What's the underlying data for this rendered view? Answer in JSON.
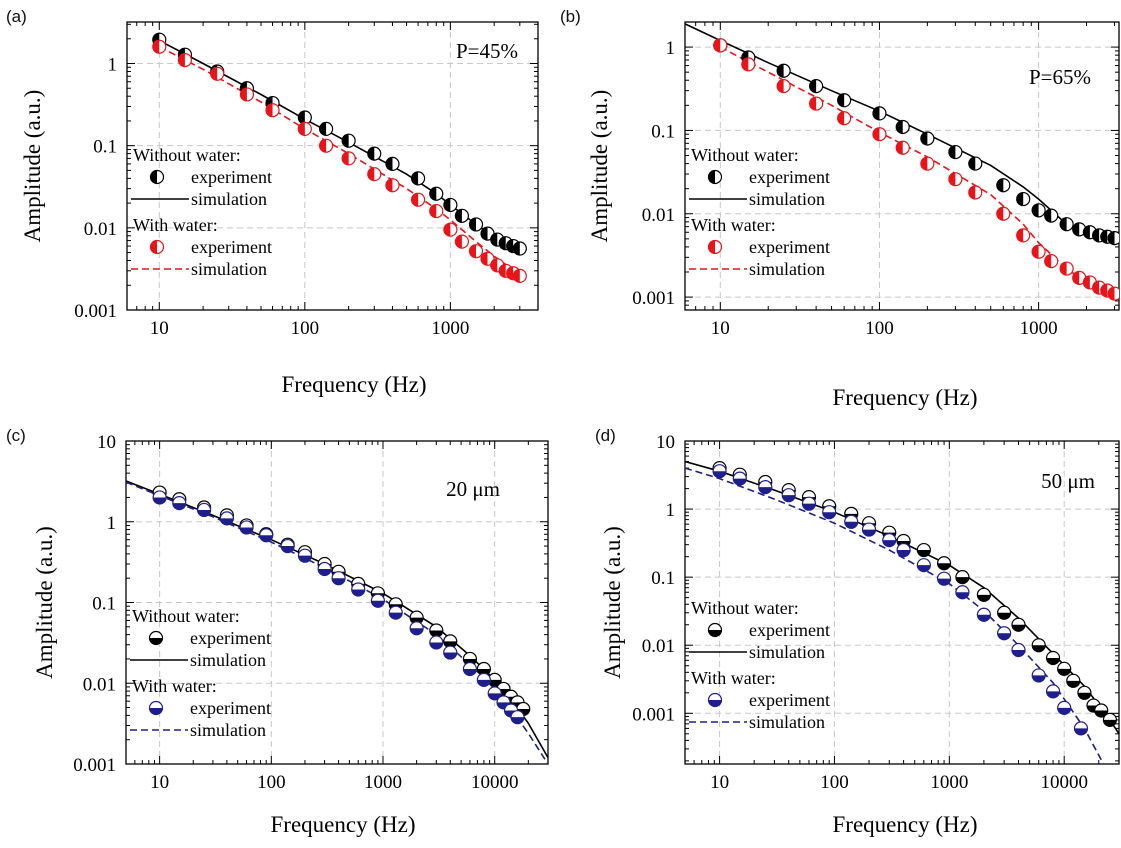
{
  "figure": {
    "panels": [
      {
        "id": "a",
        "label": "(a)",
        "annotation": "P=45%",
        "xlabel": "Frequency (Hz)",
        "ylabel": "Amplitude (a.u.)",
        "x_ticks": [
          "10",
          "100",
          "1000"
        ],
        "y_ticks": [
          "0.001",
          "0.01",
          "0.1",
          "1"
        ],
        "legend": {
          "group1_title": "Without water:",
          "group1_exp": "experiment",
          "group1_sim": "simulation",
          "group2_title": "With water:",
          "group2_exp": "experiment",
          "group2_sim": "simulation"
        }
      },
      {
        "id": "b",
        "label": "(b)",
        "annotation": "P=65%",
        "xlabel": "Frequency (Hz)",
        "ylabel": "Amplitude (a.u.)",
        "x_ticks": [
          "10",
          "100",
          "1000"
        ],
        "y_ticks": [
          "0.001",
          "0.01",
          "0.1",
          "1"
        ],
        "legend": {
          "group1_title": "Without water:",
          "group1_exp": "experiment",
          "group1_sim": "simulation",
          "group2_title": "With water:",
          "group2_exp": "experiment",
          "group2_sim": "simulation"
        }
      },
      {
        "id": "c",
        "label": "(c)",
        "annotation": "20 μm",
        "xlabel": "Frequency (Hz)",
        "ylabel": "Amplitude (a.u.)",
        "x_ticks": [
          "10",
          "100",
          "1000",
          "10000"
        ],
        "y_ticks": [
          "0.001",
          "0.01",
          "0.1",
          "1",
          "10"
        ],
        "legend": {
          "group1_title": "Without water:",
          "group1_exp": "experiment",
          "group1_sim": "simulation",
          "group2_title": "With water:",
          "group2_exp": "experiment",
          "group2_sim": "simulation"
        }
      },
      {
        "id": "d",
        "label": "(d)",
        "annotation": "50 μm",
        "xlabel": "Frequency (Hz)",
        "ylabel": "Amplitude (a.u.)",
        "x_ticks": [
          "10",
          "100",
          "1000",
          "10000"
        ],
        "y_ticks": [
          "0.001",
          "0.01",
          "0.1",
          "1",
          "10"
        ],
        "legend": {
          "group1_title": "Without water:",
          "group1_exp": "experiment",
          "group1_sim": "simulation",
          "group2_title": "With water:",
          "group2_exp": "experiment",
          "group2_sim": "simulation"
        }
      }
    ]
  },
  "chart_data": [
    {
      "panel": "a",
      "type": "scatter",
      "x_scale": "log",
      "y_scale": "log",
      "xlim": [
        6,
        4000
      ],
      "ylim": [
        0.001,
        3.2
      ],
      "grid": true,
      "colors": {
        "without": "#000000",
        "with": "#e8141a"
      },
      "series": [
        {
          "name": "Without water: experiment",
          "style": "half-filled-circle",
          "x": [
            10,
            15,
            25,
            40,
            60,
            100,
            140,
            200,
            300,
            400,
            600,
            800,
            1000,
            1200,
            1500,
            1800,
            2100,
            2400,
            2700,
            3000
          ],
          "y": [
            1.95,
            1.28,
            0.8,
            0.5,
            0.33,
            0.22,
            0.16,
            0.115,
            0.08,
            0.06,
            0.04,
            0.026,
            0.019,
            0.014,
            0.011,
            0.0085,
            0.0072,
            0.0065,
            0.006,
            0.0056
          ]
        },
        {
          "name": "Without water: simulation",
          "style": "solid",
          "x": [
            10,
            20,
            50,
            100,
            200,
            500,
            800,
            1000,
            1500,
            2000,
            2500,
            3000
          ],
          "y": [
            1.9,
            1.0,
            0.42,
            0.21,
            0.11,
            0.045,
            0.026,
            0.019,
            0.011,
            0.0078,
            0.0066,
            0.0062
          ]
        },
        {
          "name": "With water: experiment",
          "style": "half-filled-circle",
          "x": [
            10,
            15,
            25,
            40,
            60,
            100,
            140,
            200,
            300,
            400,
            600,
            800,
            1000,
            1200,
            1500,
            1800,
            2100,
            2400,
            2700,
            3000
          ],
          "y": [
            1.6,
            1.1,
            0.75,
            0.42,
            0.27,
            0.16,
            0.1,
            0.07,
            0.045,
            0.033,
            0.022,
            0.016,
            0.0095,
            0.0068,
            0.0052,
            0.0042,
            0.0035,
            0.003,
            0.0028,
            0.0026
          ]
        },
        {
          "name": "With water: simulation",
          "style": "dashed",
          "x": [
            10,
            20,
            50,
            100,
            200,
            500,
            800,
            1000,
            1500,
            2000,
            2500,
            3000
          ],
          "y": [
            1.6,
            0.85,
            0.34,
            0.16,
            0.08,
            0.03,
            0.017,
            0.0125,
            0.0068,
            0.0045,
            0.0034,
            0.0028
          ]
        }
      ]
    },
    {
      "panel": "b",
      "type": "scatter",
      "x_scale": "log",
      "y_scale": "log",
      "xlim": [
        6,
        3200
      ],
      "ylim": [
        0.0007,
        2
      ],
      "grid": true,
      "colors": {
        "without": "#000000",
        "with": "#e8141a"
      },
      "series": [
        {
          "name": "Without water: experiment",
          "style": "half-filled-circle",
          "x": [
            10,
            15,
            25,
            40,
            60,
            100,
            140,
            200,
            300,
            400,
            600,
            800,
            1000,
            1200,
            1500,
            1800,
            2100,
            2400,
            2700,
            3000
          ],
          "y": [
            1.05,
            0.75,
            0.52,
            0.34,
            0.23,
            0.16,
            0.11,
            0.08,
            0.055,
            0.04,
            0.022,
            0.015,
            0.011,
            0.0095,
            0.0075,
            0.0065,
            0.006,
            0.0055,
            0.0053,
            0.0051
          ]
        },
        {
          "name": "Without water: simulation",
          "style": "solid",
          "x": [
            6,
            10,
            20,
            50,
            100,
            200,
            500,
            800,
            1000,
            1500,
            2000,
            2500,
            3200
          ],
          "y": [
            1.9,
            1.2,
            0.65,
            0.3,
            0.17,
            0.09,
            0.038,
            0.021,
            0.015,
            0.0075,
            0.0055,
            0.0048,
            0.0045
          ]
        },
        {
          "name": "With water: experiment",
          "style": "half-filled-circle",
          "x": [
            10,
            15,
            25,
            40,
            60,
            100,
            140,
            200,
            300,
            400,
            600,
            800,
            1000,
            1200,
            1500,
            1800,
            2100,
            2400,
            2700,
            3000
          ],
          "y": [
            1.05,
            0.62,
            0.34,
            0.21,
            0.14,
            0.09,
            0.062,
            0.04,
            0.026,
            0.018,
            0.01,
            0.0055,
            0.0035,
            0.0027,
            0.0022,
            0.0017,
            0.0015,
            0.0013,
            0.0012,
            0.0011
          ]
        },
        {
          "name": "With water: simulation",
          "style": "dashed",
          "x": [
            10,
            20,
            50,
            100,
            200,
            500,
            800,
            1000,
            1500,
            2000,
            2500,
            3200
          ],
          "y": [
            1.0,
            0.5,
            0.2,
            0.095,
            0.048,
            0.017,
            0.0075,
            0.0045,
            0.0022,
            0.0015,
            0.0012,
            0.001
          ]
        }
      ]
    },
    {
      "panel": "c",
      "type": "scatter",
      "x_scale": "log",
      "y_scale": "log",
      "xlim": [
        5,
        30000
      ],
      "ylim": [
        0.001,
        10
      ],
      "grid": true,
      "colors": {
        "without": "#000000",
        "with": "#1f1f8c"
      },
      "series": [
        {
          "name": "Without water: experiment",
          "style": "half-filled-circle",
          "x": [
            10,
            15,
            25,
            40,
            60,
            90,
            140,
            200,
            300,
            400,
            600,
            900,
            1300,
            2000,
            3000,
            4000,
            6000,
            8000,
            10000,
            12000,
            14000,
            16000,
            18000
          ],
          "y": [
            2.3,
            1.9,
            1.5,
            1.2,
            0.9,
            0.7,
            0.52,
            0.42,
            0.3,
            0.24,
            0.17,
            0.13,
            0.095,
            0.065,
            0.045,
            0.033,
            0.02,
            0.015,
            0.011,
            0.0085,
            0.0068,
            0.0058,
            0.0048
          ]
        },
        {
          "name": "Without water: simulation",
          "style": "solid",
          "x": [
            5,
            10,
            30,
            100,
            300,
            1000,
            3000,
            6000,
            10000,
            15000,
            20000,
            30000
          ],
          "y": [
            3.2,
            2.2,
            1.2,
            0.6,
            0.3,
            0.13,
            0.05,
            0.022,
            0.011,
            0.0055,
            0.0032,
            0.0012
          ]
        },
        {
          "name": "With water: experiment",
          "style": "half-filled-circle",
          "x": [
            10,
            15,
            25,
            40,
            60,
            90,
            140,
            200,
            300,
            400,
            600,
            900,
            1300,
            2000,
            3000,
            4000,
            6000,
            8000,
            10000,
            12000,
            14000,
            16000
          ],
          "y": [
            2.0,
            1.7,
            1.4,
            1.1,
            0.85,
            0.68,
            0.5,
            0.38,
            0.26,
            0.2,
            0.145,
            0.105,
            0.075,
            0.048,
            0.032,
            0.024,
            0.015,
            0.011,
            0.0075,
            0.0058,
            0.0046,
            0.0038
          ]
        },
        {
          "name": "With water: simulation",
          "style": "dashed",
          "x": [
            5,
            10,
            30,
            100,
            300,
            1000,
            3000,
            6000,
            10000,
            15000,
            20000,
            30000
          ],
          "y": [
            3.1,
            2.1,
            1.15,
            0.56,
            0.27,
            0.11,
            0.04,
            0.017,
            0.0085,
            0.0042,
            0.0024,
            0.001
          ]
        }
      ]
    },
    {
      "panel": "d",
      "type": "scatter",
      "x_scale": "log",
      "y_scale": "log",
      "xlim": [
        5,
        30000
      ],
      "ylim": [
        0.00018,
        10
      ],
      "grid": true,
      "colors": {
        "without": "#000000",
        "with": "#1f1f8c"
      },
      "series": [
        {
          "name": "Without water: experiment",
          "style": "half-filled-circle",
          "x": [
            10,
            15,
            25,
            40,
            60,
            90,
            140,
            200,
            300,
            400,
            600,
            900,
            1300,
            2000,
            3000,
            4000,
            6000,
            8000,
            10000,
            12000,
            15000,
            18000,
            21000,
            25000
          ],
          "y": [
            4.0,
            3.2,
            2.5,
            1.9,
            1.5,
            1.1,
            0.85,
            0.62,
            0.45,
            0.34,
            0.25,
            0.16,
            0.1,
            0.055,
            0.03,
            0.02,
            0.01,
            0.0065,
            0.0045,
            0.003,
            0.002,
            0.0013,
            0.0011,
            0.0008
          ]
        },
        {
          "name": "Without water: simulation",
          "style": "solid",
          "x": [
            5,
            10,
            30,
            100,
            300,
            1000,
            2000,
            4000,
            8000,
            15000,
            25000,
            30000
          ],
          "y": [
            5.0,
            3.6,
            1.9,
            0.9,
            0.4,
            0.15,
            0.07,
            0.025,
            0.0075,
            0.0025,
            0.0008,
            0.0005
          ]
        },
        {
          "name": "With water: experiment",
          "style": "half-filled-circle",
          "x": [
            10,
            15,
            25,
            40,
            60,
            90,
            140,
            200,
            300,
            400,
            600,
            900,
            1300,
            2000,
            3000,
            4000,
            6000,
            8000,
            10000,
            14000
          ],
          "y": [
            3.6,
            2.8,
            2.1,
            1.6,
            1.2,
            0.9,
            0.65,
            0.5,
            0.35,
            0.25,
            0.15,
            0.095,
            0.06,
            0.028,
            0.015,
            0.0085,
            0.0036,
            0.0021,
            0.0012,
            0.0006
          ]
        },
        {
          "name": "With water: simulation",
          "style": "dashed",
          "x": [
            5,
            10,
            30,
            100,
            300,
            1000,
            2000,
            4000,
            8000,
            15000,
            22000
          ],
          "y": [
            4.0,
            2.8,
            1.4,
            0.62,
            0.25,
            0.08,
            0.032,
            0.01,
            0.0028,
            0.0006,
            0.00018
          ]
        }
      ]
    }
  ]
}
